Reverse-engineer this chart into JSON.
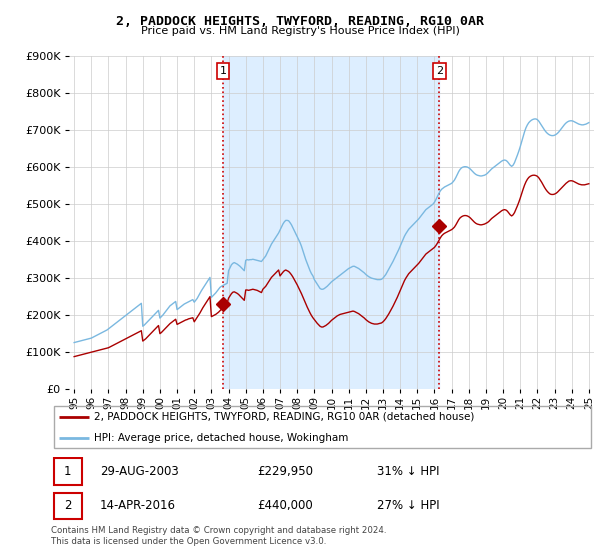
{
  "title": "2, PADDOCK HEIGHTS, TWYFORD, READING, RG10 0AR",
  "subtitle": "Price paid vs. HM Land Registry's House Price Index (HPI)",
  "hpi_label": "HPI: Average price, detached house, Wokingham",
  "price_label": "2, PADDOCK HEIGHTS, TWYFORD, READING, RG10 0AR (detached house)",
  "footer": "Contains HM Land Registry data © Crown copyright and database right 2024.\nThis data is licensed under the Open Government Licence v3.0.",
  "transactions": [
    {
      "num": 1,
      "date": "29-AUG-2003",
      "price": 229950,
      "pct": "31%",
      "dir": "↓",
      "x": 2003.67
    },
    {
      "num": 2,
      "date": "14-APR-2016",
      "price": 440000,
      "pct": "27%",
      "dir": "↓",
      "x": 2016.29
    }
  ],
  "ylim": [
    0,
    900000
  ],
  "xlim": [
    1994.7,
    2025.3
  ],
  "yticks": [
    0,
    100000,
    200000,
    300000,
    400000,
    500000,
    600000,
    700000,
    800000,
    900000
  ],
  "xticks": [
    1995,
    1996,
    1997,
    1998,
    1999,
    2000,
    2001,
    2002,
    2003,
    2004,
    2005,
    2006,
    2007,
    2008,
    2009,
    2010,
    2011,
    2012,
    2013,
    2014,
    2015,
    2016,
    2017,
    2018,
    2019,
    2020,
    2021,
    2022,
    2023,
    2024,
    2025
  ],
  "hpi_color": "#7ab8e0",
  "price_color": "#aa0000",
  "vline_color": "#cc0000",
  "bg_color": "#ffffff",
  "grid_color": "#cccccc",
  "shade_color": "#ddeeff",
  "hpi_x": [
    1995.0,
    1995.083,
    1995.167,
    1995.25,
    1995.333,
    1995.417,
    1995.5,
    1995.583,
    1995.667,
    1995.75,
    1995.833,
    1995.917,
    1996.0,
    1996.083,
    1996.167,
    1996.25,
    1996.333,
    1996.417,
    1996.5,
    1996.583,
    1996.667,
    1996.75,
    1996.833,
    1996.917,
    1997.0,
    1997.083,
    1997.167,
    1997.25,
    1997.333,
    1997.417,
    1997.5,
    1997.583,
    1997.667,
    1997.75,
    1997.833,
    1997.917,
    1998.0,
    1998.083,
    1998.167,
    1998.25,
    1998.333,
    1998.417,
    1998.5,
    1998.583,
    1998.667,
    1998.75,
    1998.833,
    1998.917,
    1999.0,
    1999.083,
    1999.167,
    1999.25,
    1999.333,
    1999.417,
    1999.5,
    1999.583,
    1999.667,
    1999.75,
    1999.833,
    1999.917,
    2000.0,
    2000.083,
    2000.167,
    2000.25,
    2000.333,
    2000.417,
    2000.5,
    2000.583,
    2000.667,
    2000.75,
    2000.833,
    2000.917,
    2001.0,
    2001.083,
    2001.167,
    2001.25,
    2001.333,
    2001.417,
    2001.5,
    2001.583,
    2001.667,
    2001.75,
    2001.833,
    2001.917,
    2002.0,
    2002.083,
    2002.167,
    2002.25,
    2002.333,
    2002.417,
    2002.5,
    2002.583,
    2002.667,
    2002.75,
    2002.833,
    2002.917,
    2003.0,
    2003.083,
    2003.167,
    2003.25,
    2003.333,
    2003.417,
    2003.5,
    2003.583,
    2003.667,
    2003.75,
    2003.833,
    2003.917,
    2004.0,
    2004.083,
    2004.167,
    2004.25,
    2004.333,
    2004.417,
    2004.5,
    2004.583,
    2004.667,
    2004.75,
    2004.833,
    2004.917,
    2005.0,
    2005.083,
    2005.167,
    2005.25,
    2005.333,
    2005.417,
    2005.5,
    2005.583,
    2005.667,
    2005.75,
    2005.833,
    2005.917,
    2006.0,
    2006.083,
    2006.167,
    2006.25,
    2006.333,
    2006.417,
    2006.5,
    2006.583,
    2006.667,
    2006.75,
    2006.833,
    2006.917,
    2007.0,
    2007.083,
    2007.167,
    2007.25,
    2007.333,
    2007.417,
    2007.5,
    2007.583,
    2007.667,
    2007.75,
    2007.833,
    2007.917,
    2008.0,
    2008.083,
    2008.167,
    2008.25,
    2008.333,
    2008.417,
    2008.5,
    2008.583,
    2008.667,
    2008.75,
    2008.833,
    2008.917,
    2009.0,
    2009.083,
    2009.167,
    2009.25,
    2009.333,
    2009.417,
    2009.5,
    2009.583,
    2009.667,
    2009.75,
    2009.833,
    2009.917,
    2010.0,
    2010.083,
    2010.167,
    2010.25,
    2010.333,
    2010.417,
    2010.5,
    2010.583,
    2010.667,
    2010.75,
    2010.833,
    2010.917,
    2011.0,
    2011.083,
    2011.167,
    2011.25,
    2011.333,
    2011.417,
    2011.5,
    2011.583,
    2011.667,
    2011.75,
    2011.833,
    2011.917,
    2012.0,
    2012.083,
    2012.167,
    2012.25,
    2012.333,
    2012.417,
    2012.5,
    2012.583,
    2012.667,
    2012.75,
    2012.833,
    2012.917,
    2013.0,
    2013.083,
    2013.167,
    2013.25,
    2013.333,
    2013.417,
    2013.5,
    2013.583,
    2013.667,
    2013.75,
    2013.833,
    2013.917,
    2014.0,
    2014.083,
    2014.167,
    2014.25,
    2014.333,
    2014.417,
    2014.5,
    2014.583,
    2014.667,
    2014.75,
    2014.833,
    2014.917,
    2015.0,
    2015.083,
    2015.167,
    2015.25,
    2015.333,
    2015.417,
    2015.5,
    2015.583,
    2015.667,
    2015.75,
    2015.833,
    2015.917,
    2016.0,
    2016.083,
    2016.167,
    2016.25,
    2016.333,
    2016.417,
    2016.5,
    2016.583,
    2016.667,
    2016.75,
    2016.833,
    2016.917,
    2017.0,
    2017.083,
    2017.167,
    2017.25,
    2017.333,
    2017.417,
    2017.5,
    2017.583,
    2017.667,
    2017.75,
    2017.833,
    2017.917,
    2018.0,
    2018.083,
    2018.167,
    2018.25,
    2018.333,
    2018.417,
    2018.5,
    2018.583,
    2018.667,
    2018.75,
    2018.833,
    2018.917,
    2019.0,
    2019.083,
    2019.167,
    2019.25,
    2019.333,
    2019.417,
    2019.5,
    2019.583,
    2019.667,
    2019.75,
    2019.833,
    2019.917,
    2020.0,
    2020.083,
    2020.167,
    2020.25,
    2020.333,
    2020.417,
    2020.5,
    2020.583,
    2020.667,
    2020.75,
    2020.833,
    2020.917,
    2021.0,
    2021.083,
    2021.167,
    2021.25,
    2021.333,
    2021.417,
    2021.5,
    2021.583,
    2021.667,
    2021.75,
    2021.833,
    2021.917,
    2022.0,
    2022.083,
    2022.167,
    2022.25,
    2022.333,
    2022.417,
    2022.5,
    2022.583,
    2022.667,
    2022.75,
    2022.833,
    2022.917,
    2023.0,
    2023.083,
    2023.167,
    2023.25,
    2023.333,
    2023.417,
    2023.5,
    2023.583,
    2023.667,
    2023.75,
    2023.833,
    2023.917,
    2024.0,
    2024.083,
    2024.167,
    2024.25,
    2024.333,
    2024.417,
    2024.5,
    2024.583,
    2024.667,
    2024.75,
    2024.833,
    2024.917,
    2025.0
  ],
  "hpi_y": [
    126000,
    127000,
    128000,
    129000,
    130000,
    131000,
    132000,
    133000,
    134000,
    135000,
    136000,
    137000,
    138000,
    140000,
    142000,
    144000,
    146000,
    148000,
    150000,
    152000,
    154000,
    156000,
    158000,
    160000,
    163000,
    166000,
    169000,
    172000,
    175000,
    178000,
    181000,
    184000,
    187000,
    190000,
    193000,
    196000,
    199000,
    202000,
    205000,
    208000,
    211000,
    214000,
    217000,
    220000,
    223000,
    226000,
    229000,
    232000,
    170000,
    173000,
    177000,
    181000,
    185000,
    189000,
    193000,
    197000,
    201000,
    205000,
    209000,
    213000,
    192000,
    196000,
    200000,
    205000,
    210000,
    215000,
    220000,
    225000,
    228000,
    231000,
    234000,
    237000,
    215000,
    218000,
    221000,
    224000,
    227000,
    230000,
    232000,
    234000,
    236000,
    238000,
    240000,
    242000,
    235000,
    240000,
    245000,
    252000,
    259000,
    266000,
    272000,
    278000,
    284000,
    290000,
    296000,
    302000,
    248000,
    252000,
    256000,
    260000,
    265000,
    270000,
    275000,
    278000,
    280000,
    282000,
    284000,
    286000,
    320000,
    328000,
    336000,
    340000,
    342000,
    340000,
    338000,
    335000,
    332000,
    328000,
    324000,
    320000,
    348000,
    350000,
    349000,
    350000,
    350000,
    351000,
    350000,
    349000,
    348000,
    347000,
    346000,
    345000,
    350000,
    355000,
    360000,
    368000,
    376000,
    384000,
    392000,
    398000,
    404000,
    410000,
    416000,
    422000,
    430000,
    438000,
    446000,
    452000,
    456000,
    456000,
    455000,
    450000,
    444000,
    436000,
    428000,
    420000,
    412000,
    404000,
    396000,
    386000,
    374000,
    362000,
    350000,
    340000,
    330000,
    320000,
    312000,
    306000,
    296000,
    290000,
    284000,
    278000,
    272000,
    270000,
    270000,
    272000,
    275000,
    278000,
    282000,
    286000,
    290000,
    293000,
    296000,
    299000,
    302000,
    305000,
    308000,
    311000,
    314000,
    317000,
    320000,
    323000,
    326000,
    328000,
    330000,
    332000,
    332000,
    330000,
    328000,
    326000,
    323000,
    320000,
    317000,
    314000,
    310000,
    307000,
    304000,
    302000,
    300000,
    299000,
    298000,
    297000,
    296000,
    296000,
    296000,
    297000,
    300000,
    305000,
    310000,
    317000,
    324000,
    331000,
    338000,
    345000,
    353000,
    361000,
    369000,
    377000,
    386000,
    395000,
    404000,
    413000,
    420000,
    426000,
    432000,
    436000,
    440000,
    444000,
    448000,
    452000,
    456000,
    460000,
    465000,
    470000,
    475000,
    480000,
    485000,
    488000,
    491000,
    494000,
    497000,
    500000,
    505000,
    512000,
    520000,
    528000,
    535000,
    540000,
    543000,
    546000,
    548000,
    550000,
    552000,
    554000,
    556000,
    560000,
    565000,
    572000,
    580000,
    588000,
    594000,
    598000,
    600000,
    601000,
    601000,
    600000,
    598000,
    595000,
    591000,
    587000,
    583000,
    580000,
    578000,
    577000,
    576000,
    576000,
    577000,
    578000,
    580000,
    583000,
    587000,
    591000,
    595000,
    598000,
    601000,
    604000,
    607000,
    610000,
    613000,
    616000,
    618000,
    619000,
    618000,
    615000,
    610000,
    605000,
    602000,
    605000,
    612000,
    622000,
    632000,
    643000,
    655000,
    668000,
    682000,
    695000,
    706000,
    714000,
    720000,
    724000,
    727000,
    729000,
    730000,
    730000,
    728000,
    724000,
    718000,
    712000,
    706000,
    700000,
    695000,
    691000,
    688000,
    686000,
    685000,
    685000,
    686000,
    688000,
    691000,
    695000,
    700000,
    705000,
    710000,
    715000,
    719000,
    722000,
    724000,
    725000,
    725000,
    724000,
    722000,
    720000,
    718000,
    716000,
    715000,
    714000,
    714000,
    715000,
    716000,
    718000,
    720000
  ],
  "price_x": [
    1995.0,
    1995.083,
    1995.167,
    1995.25,
    1995.333,
    1995.417,
    1995.5,
    1995.583,
    1995.667,
    1995.75,
    1995.833,
    1995.917,
    1996.0,
    1996.083,
    1996.167,
    1996.25,
    1996.333,
    1996.417,
    1996.5,
    1996.583,
    1996.667,
    1996.75,
    1996.833,
    1996.917,
    1997.0,
    1997.083,
    1997.167,
    1997.25,
    1997.333,
    1997.417,
    1997.5,
    1997.583,
    1997.667,
    1997.75,
    1997.833,
    1997.917,
    1998.0,
    1998.083,
    1998.167,
    1998.25,
    1998.333,
    1998.417,
    1998.5,
    1998.583,
    1998.667,
    1998.75,
    1998.833,
    1998.917,
    1999.0,
    1999.083,
    1999.167,
    1999.25,
    1999.333,
    1999.417,
    1999.5,
    1999.583,
    1999.667,
    1999.75,
    1999.833,
    1999.917,
    2000.0,
    2000.083,
    2000.167,
    2000.25,
    2000.333,
    2000.417,
    2000.5,
    2000.583,
    2000.667,
    2000.75,
    2000.833,
    2000.917,
    2001.0,
    2001.083,
    2001.167,
    2001.25,
    2001.333,
    2001.417,
    2001.5,
    2001.583,
    2001.667,
    2001.75,
    2001.833,
    2001.917,
    2002.0,
    2002.083,
    2002.167,
    2002.25,
    2002.333,
    2002.417,
    2002.5,
    2002.583,
    2002.667,
    2002.75,
    2002.833,
    2002.917,
    2003.0,
    2003.083,
    2003.167,
    2003.25,
    2003.333,
    2003.417,
    2003.5,
    2003.583,
    2003.667,
    2003.75,
    2003.833,
    2003.917,
    2004.0,
    2004.083,
    2004.167,
    2004.25,
    2004.333,
    2004.417,
    2004.5,
    2004.583,
    2004.667,
    2004.75,
    2004.833,
    2004.917,
    2005.0,
    2005.083,
    2005.167,
    2005.25,
    2005.333,
    2005.417,
    2005.5,
    2005.583,
    2005.667,
    2005.75,
    2005.833,
    2005.917,
    2006.0,
    2006.083,
    2006.167,
    2006.25,
    2006.333,
    2006.417,
    2006.5,
    2006.583,
    2006.667,
    2006.75,
    2006.833,
    2006.917,
    2007.0,
    2007.083,
    2007.167,
    2007.25,
    2007.333,
    2007.417,
    2007.5,
    2007.583,
    2007.667,
    2007.75,
    2007.833,
    2007.917,
    2008.0,
    2008.083,
    2008.167,
    2008.25,
    2008.333,
    2008.417,
    2008.5,
    2008.583,
    2008.667,
    2008.75,
    2008.833,
    2008.917,
    2009.0,
    2009.083,
    2009.167,
    2009.25,
    2009.333,
    2009.417,
    2009.5,
    2009.583,
    2009.667,
    2009.75,
    2009.833,
    2009.917,
    2010.0,
    2010.083,
    2010.167,
    2010.25,
    2010.333,
    2010.417,
    2010.5,
    2010.583,
    2010.667,
    2010.75,
    2010.833,
    2010.917,
    2011.0,
    2011.083,
    2011.167,
    2011.25,
    2011.333,
    2011.417,
    2011.5,
    2011.583,
    2011.667,
    2011.75,
    2011.833,
    2011.917,
    2012.0,
    2012.083,
    2012.167,
    2012.25,
    2012.333,
    2012.417,
    2012.5,
    2012.583,
    2012.667,
    2012.75,
    2012.833,
    2012.917,
    2013.0,
    2013.083,
    2013.167,
    2013.25,
    2013.333,
    2013.417,
    2013.5,
    2013.583,
    2013.667,
    2013.75,
    2013.833,
    2013.917,
    2014.0,
    2014.083,
    2014.167,
    2014.25,
    2014.333,
    2014.417,
    2014.5,
    2014.583,
    2014.667,
    2014.75,
    2014.833,
    2014.917,
    2015.0,
    2015.083,
    2015.167,
    2015.25,
    2015.333,
    2015.417,
    2015.5,
    2015.583,
    2015.667,
    2015.75,
    2015.833,
    2015.917,
    2016.0,
    2016.083,
    2016.167,
    2016.25,
    2016.333,
    2016.417,
    2016.5,
    2016.583,
    2016.667,
    2016.75,
    2016.833,
    2016.917,
    2017.0,
    2017.083,
    2017.167,
    2017.25,
    2017.333,
    2017.417,
    2017.5,
    2017.583,
    2017.667,
    2017.75,
    2017.833,
    2017.917,
    2018.0,
    2018.083,
    2018.167,
    2018.25,
    2018.333,
    2018.417,
    2018.5,
    2018.583,
    2018.667,
    2018.75,
    2018.833,
    2018.917,
    2019.0,
    2019.083,
    2019.167,
    2019.25,
    2019.333,
    2019.417,
    2019.5,
    2019.583,
    2019.667,
    2019.75,
    2019.833,
    2019.917,
    2020.0,
    2020.083,
    2020.167,
    2020.25,
    2020.333,
    2020.417,
    2020.5,
    2020.583,
    2020.667,
    2020.75,
    2020.833,
    2020.917,
    2021.0,
    2021.083,
    2021.167,
    2021.25,
    2021.333,
    2021.417,
    2021.5,
    2021.583,
    2021.667,
    2021.75,
    2021.833,
    2021.917,
    2022.0,
    2022.083,
    2022.167,
    2022.25,
    2022.333,
    2022.417,
    2022.5,
    2022.583,
    2022.667,
    2022.75,
    2022.833,
    2022.917,
    2023.0,
    2023.083,
    2023.167,
    2023.25,
    2023.333,
    2023.417,
    2023.5,
    2023.583,
    2023.667,
    2023.75,
    2023.833,
    2023.917,
    2024.0,
    2024.083,
    2024.167,
    2024.25,
    2024.333,
    2024.417,
    2024.5,
    2024.583,
    2024.667,
    2024.75,
    2024.833,
    2024.917,
    2025.0
  ],
  "price_y": [
    88000,
    89000,
    90000,
    91000,
    92000,
    93000,
    94000,
    95000,
    96000,
    97000,
    98000,
    99000,
    100000,
    101000,
    102000,
    103000,
    104000,
    105000,
    106000,
    107000,
    108000,
    109000,
    110000,
    111000,
    112000,
    114000,
    116000,
    118000,
    120000,
    122000,
    124000,
    126000,
    128000,
    130000,
    132000,
    134000,
    136000,
    138000,
    140000,
    142000,
    144000,
    146000,
    148000,
    150000,
    152000,
    154000,
    156000,
    158000,
    130000,
    133000,
    136000,
    140000,
    144000,
    148000,
    152000,
    156000,
    160000,
    164000,
    168000,
    172000,
    150000,
    153000,
    157000,
    161000,
    165000,
    169000,
    173000,
    177000,
    180000,
    183000,
    186000,
    189000,
    175000,
    177000,
    179000,
    181000,
    183000,
    185000,
    187000,
    188000,
    190000,
    191000,
    192000,
    193000,
    182000,
    188000,
    194000,
    200000,
    206000,
    213000,
    220000,
    226000,
    232000,
    238000,
    244000,
    250000,
    196000,
    198000,
    200000,
    202000,
    205000,
    208000,
    212000,
    216000,
    220000,
    224000,
    228000,
    232000,
    246000,
    252000,
    258000,
    262000,
    263000,
    261000,
    259000,
    256000,
    252000,
    248000,
    244000,
    240000,
    268000,
    268000,
    267000,
    268000,
    269000,
    270000,
    269000,
    268000,
    267000,
    265000,
    263000,
    261000,
    270000,
    274000,
    278000,
    284000,
    290000,
    296000,
    302000,
    306000,
    310000,
    314000,
    318000,
    322000,
    306000,
    311000,
    316000,
    320000,
    322000,
    320000,
    318000,
    314000,
    309000,
    303000,
    296000,
    289000,
    282000,
    274000,
    266000,
    258000,
    249000,
    240000,
    231000,
    222000,
    214000,
    206000,
    199000,
    193000,
    188000,
    183000,
    178000,
    174000,
    170000,
    168000,
    168000,
    170000,
    172000,
    175000,
    178000,
    182000,
    186000,
    189000,
    192000,
    195000,
    198000,
    200000,
    202000,
    203000,
    204000,
    205000,
    206000,
    207000,
    208000,
    209000,
    210000,
    211000,
    210000,
    208000,
    206000,
    204000,
    201000,
    198000,
    195000,
    192000,
    188000,
    185000,
    182000,
    180000,
    178000,
    177000,
    176000,
    176000,
    176000,
    177000,
    178000,
    179000,
    182000,
    186000,
    191000,
    197000,
    203000,
    210000,
    217000,
    224000,
    232000,
    240000,
    248000,
    257000,
    266000,
    275000,
    284000,
    293000,
    300000,
    306000,
    312000,
    316000,
    320000,
    324000,
    328000,
    332000,
    336000,
    340000,
    345000,
    350000,
    355000,
    360000,
    365000,
    368000,
    371000,
    374000,
    377000,
    380000,
    383000,
    388000,
    394000,
    401000,
    408000,
    414000,
    418000,
    421000,
    423000,
    425000,
    427000,
    429000,
    431000,
    434000,
    438000,
    444000,
    451000,
    458000,
    463000,
    466000,
    468000,
    469000,
    469000,
    468000,
    466000,
    463000,
    459000,
    455000,
    451000,
    448000,
    446000,
    445000,
    444000,
    444000,
    445000,
    446000,
    448000,
    450000,
    453000,
    457000,
    461000,
    464000,
    467000,
    470000,
    473000,
    476000,
    479000,
    482000,
    484000,
    485000,
    484000,
    481000,
    476000,
    471000,
    468000,
    471000,
    477000,
    486000,
    495000,
    505000,
    516000,
    528000,
    540000,
    551000,
    560000,
    567000,
    572000,
    575000,
    577000,
    578000,
    578000,
    577000,
    575000,
    571000,
    565000,
    559000,
    552000,
    545000,
    539000,
    534000,
    530000,
    527000,
    526000,
    526000,
    527000,
    529000,
    532000,
    536000,
    540000,
    544000,
    548000,
    552000,
    556000,
    559000,
    562000,
    563000,
    563000,
    562000,
    560000,
    558000,
    556000,
    554000,
    553000,
    552000,
    552000,
    552000,
    553000,
    554000,
    555000
  ]
}
